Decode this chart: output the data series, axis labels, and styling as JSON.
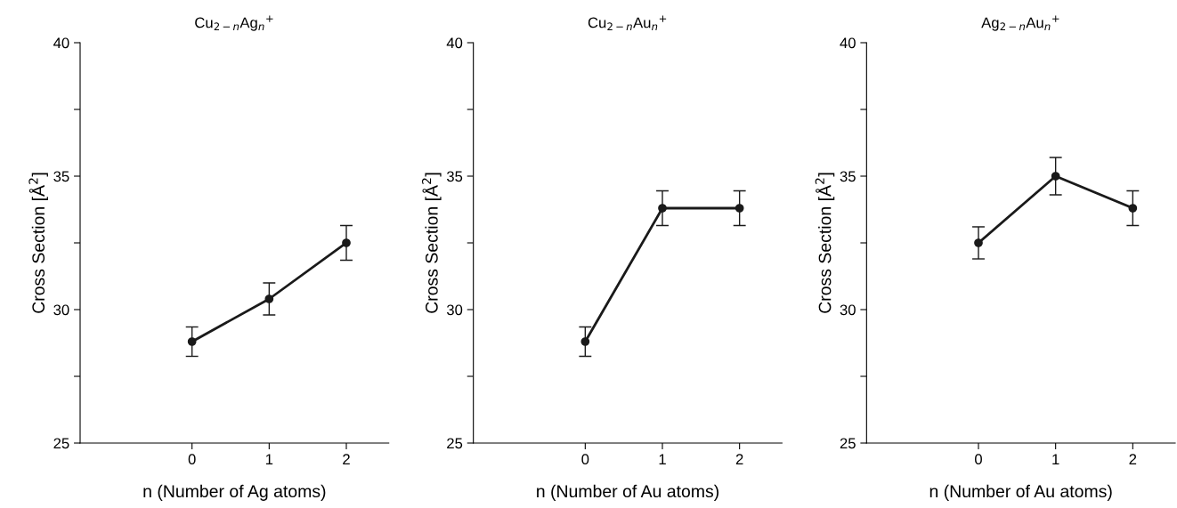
{
  "chart_data": [
    {
      "type": "line",
      "title": "Cu$_{2−n}$Ag$_{n}$$^{+}$",
      "xlabel": "n (Number of Ag atoms)",
      "ylabel": "Cross Section [Å$^{2}$]",
      "x": [
        0,
        1,
        2
      ],
      "series": [
        {
          "color": "#1a1a1a",
          "values": [
            28.8,
            30.4,
            32.5
          ],
          "errors": [
            0.55,
            0.6,
            0.65
          ]
        }
      ],
      "xlim": [
        -1.45,
        2.55
      ],
      "xticks": [
        0,
        1,
        2
      ],
      "ylim": [
        25,
        40
      ],
      "yticks": [
        25,
        {
          "value": 27.5,
          "label": null
        },
        30,
        {
          "value": 32.5,
          "label": null
        },
        35,
        {
          "value": 37.5,
          "label": null
        },
        40
      ],
      "marker": "circle",
      "line_style": "solid"
    },
    {
      "type": "line",
      "title": "Cu$_{2−n}$Au$_{n}$$^{+}$",
      "xlabel": "n (Number of Au atoms)",
      "ylabel": "Cross Section [Å$^{2}$]",
      "x": [
        0,
        1,
        2
      ],
      "series": [
        {
          "color": "#1a1a1a",
          "values": [
            28.8,
            33.8,
            33.8
          ],
          "errors": [
            0.55,
            0.65,
            0.65
          ]
        }
      ],
      "xlim": [
        -1.45,
        2.55
      ],
      "xticks": [
        0,
        1,
        2
      ],
      "ylim": [
        25,
        40
      ],
      "yticks": [
        25,
        {
          "value": 27.5,
          "label": null
        },
        30,
        {
          "value": 32.5,
          "label": null
        },
        35,
        {
          "value": 37.5,
          "label": null
        },
        40
      ],
      "marker": "circle",
      "line_style": "solid"
    },
    {
      "type": "line",
      "title": "Ag$_{2−n}$Au$_{n}$$^{+}$",
      "xlabel": "n (Number of Au atoms)",
      "ylabel": "Cross Section [Å$^{2}$]",
      "x": [
        0,
        1,
        2
      ],
      "series": [
        {
          "color": "#1a1a1a",
          "values": [
            32.5,
            35.0,
            33.8
          ],
          "errors": [
            0.6,
            0.7,
            0.65
          ]
        }
      ],
      "xlim": [
        -1.45,
        2.55
      ],
      "xticks": [
        0,
        1,
        2
      ],
      "ylim": [
        25,
        40
      ],
      "yticks": [
        25,
        {
          "value": 27.5,
          "label": null
        },
        30,
        {
          "value": 32.5,
          "label": null
        },
        35,
        {
          "value": 37.5,
          "label": null
        },
        40
      ],
      "marker": "circle",
      "line_style": "solid"
    }
  ]
}
